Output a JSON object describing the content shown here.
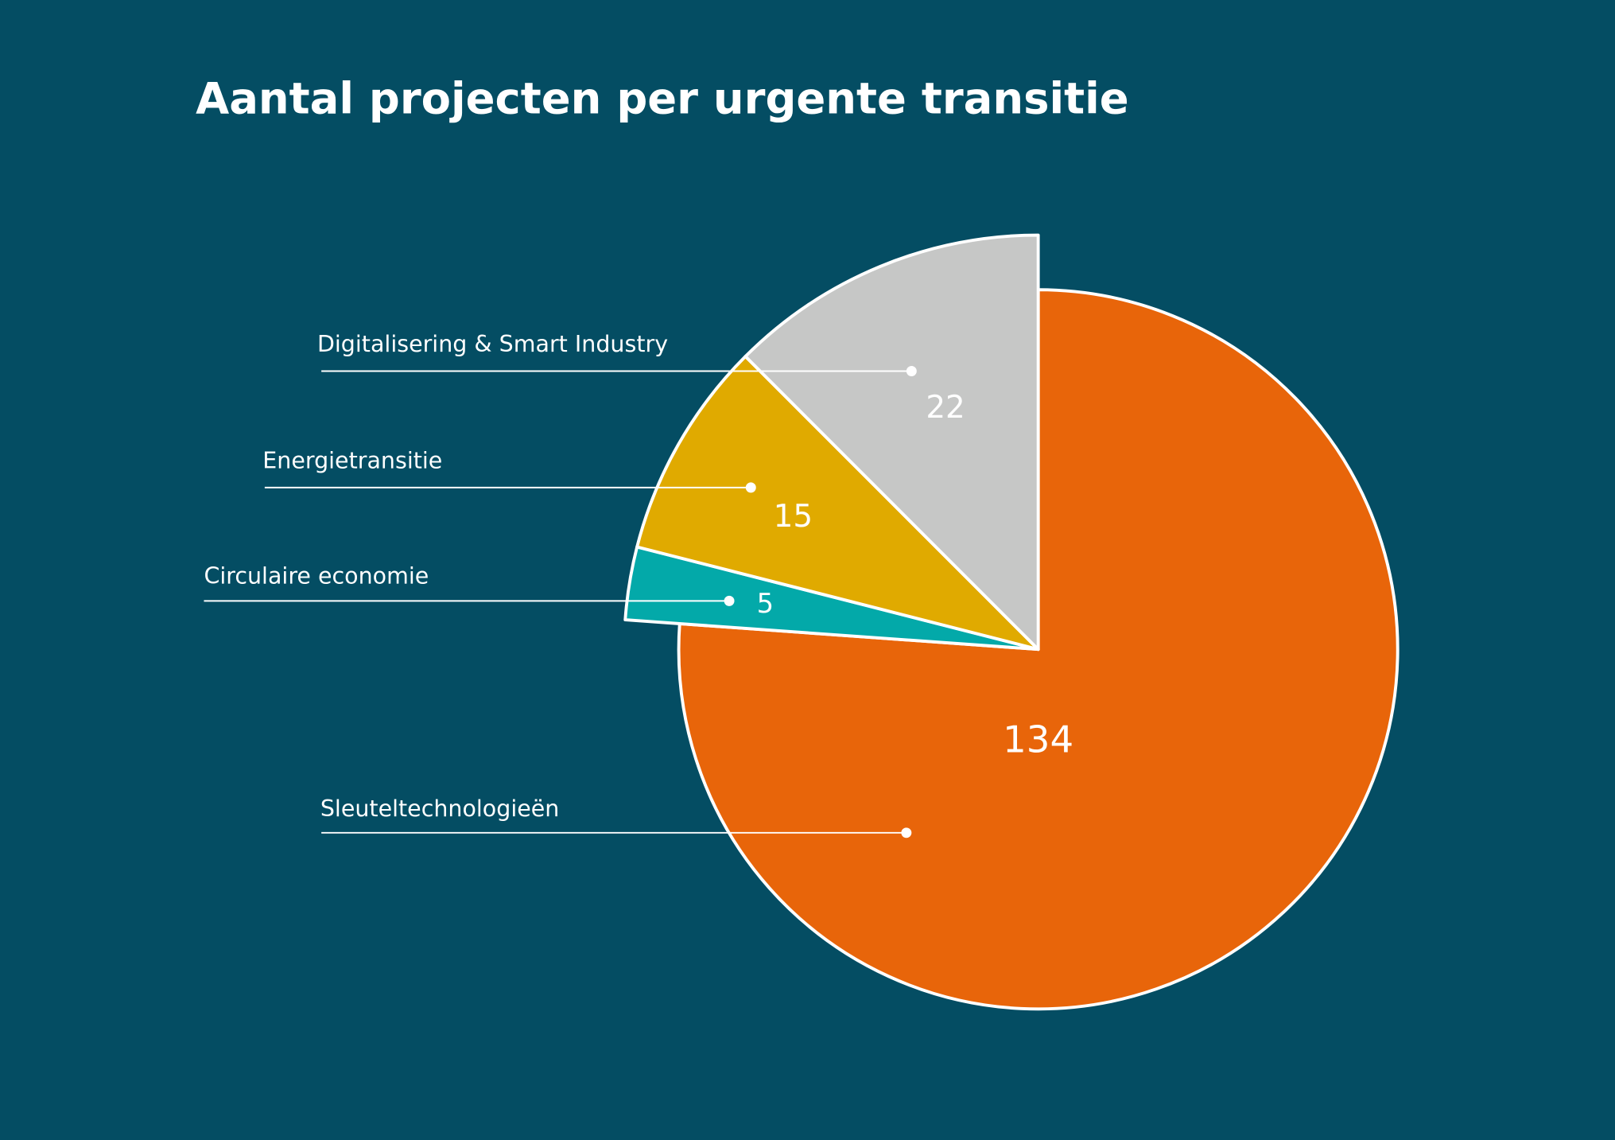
{
  "chart_data": {
    "type": "pie",
    "title": "Aantal projecten per urgente transitie",
    "categories": [
      "Sleuteltechnologieën",
      "Circulaire economie",
      "Energietransitie",
      "Digitalisering & Smart Industry"
    ],
    "values": [
      134,
      5,
      15,
      22
    ],
    "colors": [
      "#e8650a",
      "#03a9a9",
      "#e0aa00",
      "#c6c7c6"
    ]
  }
}
